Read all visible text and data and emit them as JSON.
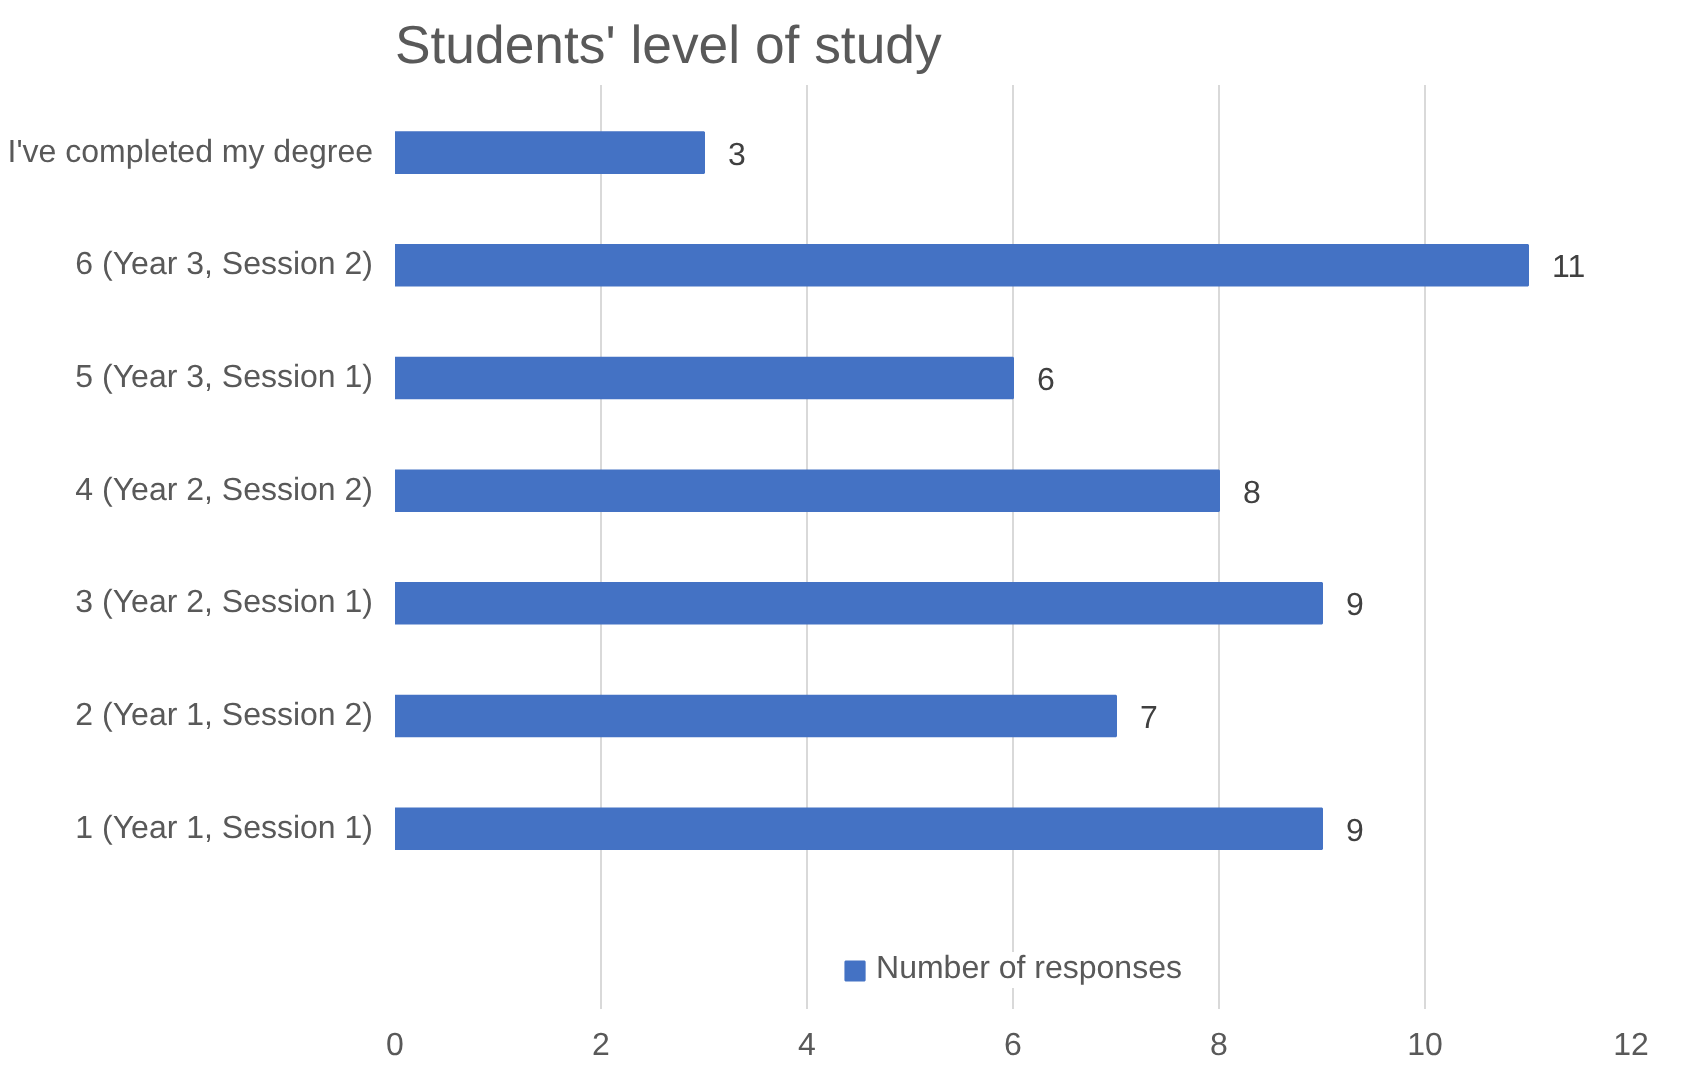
{
  "chart_data": {
    "type": "bar",
    "orientation": "horizontal",
    "title": "Students' level of study",
    "categories": [
      "I've completed my degree",
      "6 (Year 3, Session 2)",
      "5 (Year 3, Session 1)",
      "4 (Year 2, Session 2)",
      "3 (Year 2, Session 1)",
      "2 (Year 1, Session 2)",
      "1 (Year 1, Session 1)"
    ],
    "series": [
      {
        "name": "Number of responses",
        "color": "#4472c4",
        "values": [
          3,
          11,
          6,
          8,
          9,
          7,
          9
        ]
      }
    ],
    "xlim": [
      0,
      12
    ],
    "xticks": [
      0,
      2,
      4,
      6,
      8,
      10,
      12
    ],
    "grid": "x",
    "legend": "bottom",
    "data_labels": true
  }
}
